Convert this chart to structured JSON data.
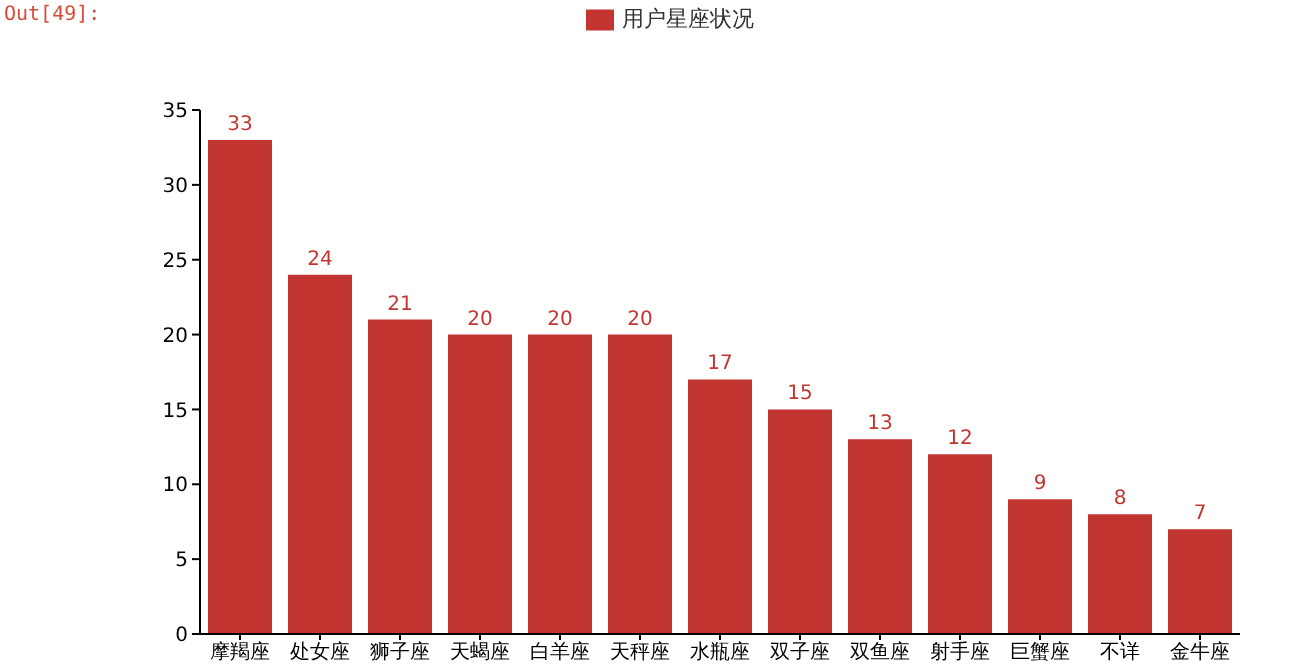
{
  "chart_data": {
    "type": "bar",
    "categories": [
      "摩羯座",
      "处女座",
      "狮子座",
      "天蝎座",
      "白羊座",
      "天秤座",
      "水瓶座",
      "双子座",
      "双鱼座",
      "射手座",
      "巨蟹座",
      "不详",
      "金牛座"
    ],
    "series": [
      {
        "name": "用户星座状况",
        "color": "#c23531",
        "values": [
          33,
          24,
          21,
          20,
          20,
          20,
          17,
          15,
          13,
          12,
          9,
          8,
          7
        ]
      }
    ],
    "ylim": [
      0,
      35
    ],
    "yticks": [
      0,
      5,
      10,
      15,
      20,
      25,
      30,
      35
    ],
    "data_labels": true,
    "legend": "top",
    "grid": false,
    "annotations": [
      "Out[49]:"
    ]
  }
}
